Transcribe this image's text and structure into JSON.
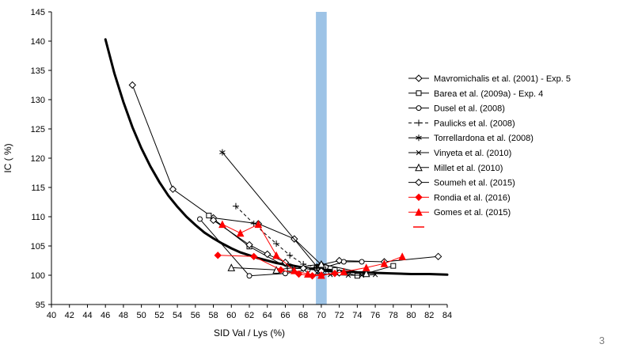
{
  "page": {
    "number": "3"
  },
  "chart_data": {
    "type": "scatter",
    "title": "",
    "xlabel": "SID Val / Lys (%)",
    "ylabel": "IC ( %)",
    "xlim": [
      40,
      84
    ],
    "ylim": [
      95,
      145
    ],
    "xticks": [
      40,
      42,
      44,
      46,
      48,
      50,
      52,
      54,
      56,
      58,
      60,
      62,
      64,
      66,
      68,
      70,
      72,
      74,
      76,
      78,
      80,
      82,
      84
    ],
    "yticks": [
      95,
      100,
      105,
      110,
      115,
      120,
      125,
      130,
      135,
      140,
      145
    ],
    "grid": false,
    "legend_position": "right",
    "highlight_band": {
      "x_from": 69.4,
      "x_to": 70.6,
      "color": "#9DC3E6"
    },
    "trend_curve": {
      "color": "#000000",
      "stroke_width": 3,
      "x": [
        46,
        47,
        48,
        49,
        50,
        51,
        52,
        53,
        54,
        55,
        56,
        57,
        58,
        59,
        60,
        61,
        62,
        63,
        64,
        65,
        66,
        67,
        68,
        69,
        70,
        71,
        72,
        74,
        76,
        78,
        80,
        82,
        84
      ],
      "y": [
        140.3,
        134.5,
        129.6,
        125.3,
        121.7,
        118.6,
        115.9,
        113.6,
        111.7,
        110.0,
        108.6,
        107.3,
        106.3,
        105.4,
        104.6,
        103.9,
        103.4,
        102.9,
        102.5,
        102.1,
        101.8,
        101.6,
        101.3,
        101.1,
        101.0,
        100.8,
        100.7,
        100.5,
        100.4,
        100.3,
        100.2,
        100.2,
        100.1
      ]
    },
    "series": [
      {
        "name": "Mavromichalis et al. (2001) - Exp. 5",
        "marker": "diamond-open",
        "color": "#000000",
        "line": "solid",
        "x": [
          49,
          53.5,
          58,
          63,
          67,
          70,
          72,
          77,
          83
        ],
        "y": [
          132.5,
          114.7,
          109.8,
          108.8,
          106.2,
          101.8,
          102.5,
          102.3,
          103.2
        ]
      },
      {
        "name": "Barea et al. (2009a) - Exp. 4",
        "marker": "square-open",
        "color": "#000000",
        "line": "solid",
        "x": [
          57.5,
          62,
          66.5,
          69.5,
          71.5,
          74,
          78
        ],
        "y": [
          110.2,
          104.9,
          101.1,
          101.3,
          100.9,
          99.9,
          101.6
        ]
      },
      {
        "name": "Dusel et al. (2008)",
        "marker": "circle-open",
        "color": "#000000",
        "line": "solid",
        "x": [
          56.5,
          62,
          66,
          68.5,
          70.5,
          72.5,
          74.5
        ],
        "y": [
          109.6,
          99.9,
          100.3,
          100.9,
          101.4,
          102.3,
          102.3
        ]
      },
      {
        "name": "Paulicks et al. (2008)",
        "marker": "plus",
        "color": "#000000",
        "line": "dashed",
        "x": [
          60.5,
          62.5,
          65,
          66.5,
          68,
          69.5,
          70.5
        ],
        "y": [
          111.8,
          108.8,
          105.4,
          103.4,
          101.9,
          101.3,
          101.0
        ]
      },
      {
        "name": "Torrellardona et al. (2008)",
        "marker": "asterisk",
        "color": "#000000",
        "line": "solid",
        "x": [
          59,
          69.5
        ],
        "y": [
          121.0,
          101.5
        ]
      },
      {
        "name": "Vinyeta et al. (2010)",
        "marker": "x-cross",
        "color": "#000000",
        "line": "solid",
        "x": [
          69.5,
          71,
          73,
          74.5,
          76
        ],
        "y": [
          100.4,
          100.1,
          100.0,
          100.0,
          100.1
        ]
      },
      {
        "name": "Millet et al. (2010)",
        "marker": "triangle-open",
        "color": "#000000",
        "line": "solid",
        "x": [
          60,
          65,
          70,
          75
        ],
        "y": [
          101.3,
          100.9,
          101.9,
          100.3
        ]
      },
      {
        "name": "Soumeh et al. (2015)",
        "marker": "diamond-open",
        "color": "#000000",
        "line": "solid",
        "x": [
          58,
          62,
          64,
          66,
          68,
          70,
          72
        ],
        "y": [
          109.4,
          105.2,
          103.6,
          102.2,
          101.2,
          100.7,
          100.4
        ]
      },
      {
        "name": "Rondia et al. (2016)",
        "marker": "diamond-filled",
        "color": "#FF0000",
        "line": "solid",
        "x": [
          58.5,
          62.5,
          65.5,
          67.5,
          69,
          70,
          71.5
        ],
        "y": [
          103.4,
          103.2,
          100.9,
          100.2,
          99.9,
          100.0,
          100.3
        ]
      },
      {
        "name": "Gomes et al. (2015)",
        "marker": "triangle-filled",
        "color": "#FF0000",
        "line": "solid",
        "x": [
          59,
          61,
          63,
          65,
          67,
          68.5,
          70,
          72.5,
          75,
          77,
          79
        ],
        "y": [
          108.7,
          107.2,
          108.7,
          103.4,
          100.8,
          100.2,
          100.0,
          100.6,
          101.3,
          102.0,
          103.2
        ]
      }
    ],
    "legend_extra": {
      "label": "",
      "marker": "dash",
      "color": "#FF0000",
      "line": "none"
    }
  }
}
